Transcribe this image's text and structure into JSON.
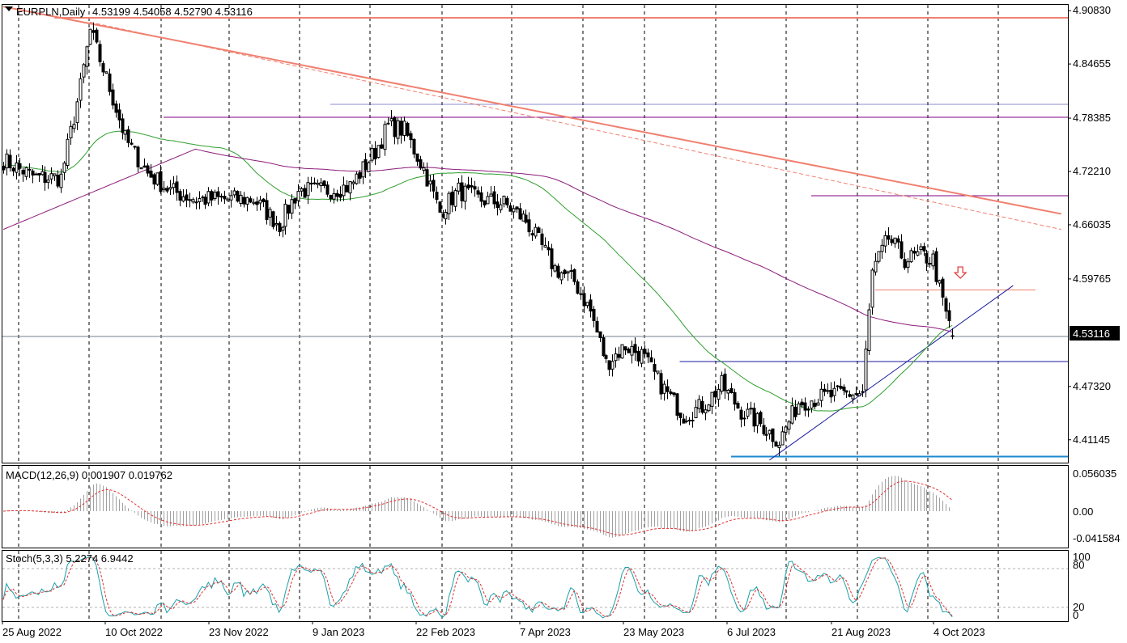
{
  "header": {
    "symbol_tf": "EURPLN,Daily",
    "ohlc": "4.53199 4.54058 4.52790 4.53116"
  },
  "price_axis": {
    "labels": [
      "4.90830",
      "4.84655",
      "4.78385",
      "4.72210",
      "4.66035",
      "4.59765",
      "4.47320",
      "4.41145"
    ],
    "current_price": "4.53116"
  },
  "macd": {
    "label": "MACD(12,26,9) 0.001907 0.019762",
    "axis_labels": [
      "0.056035",
      "0.00",
      "-0.041584"
    ]
  },
  "stoch": {
    "label": "Stoch(5,3,3) 5.2274 6.9442",
    "axis_labels": [
      "100",
      "80",
      "20",
      "0"
    ]
  },
  "time_axis": {
    "labels": [
      "25 Aug 2022",
      "10 Oct 2022",
      "23 Nov 2022",
      "9 Jan 2023",
      "22 Feb 2023",
      "7 Apr 2023",
      "23 May 2023",
      "6 Jul 2023",
      "21 Aug 2023",
      "4 Oct 2023"
    ]
  },
  "colors": {
    "bull": "#000000",
    "bear": "#000000",
    "ma_fast": "#2e9e2e",
    "ma_slow": "#8b1a7a",
    "trend_res": "#f08070",
    "support_blue": "#1a1aa0",
    "level_purple": "#800080",
    "arrow": "#e03030",
    "macd_line": "#e03030",
    "stoch_main": "#1aa0a8",
    "stoch_signal": "#e03030"
  },
  "chart_data": {
    "type": "candlestick",
    "symbol": "EURPLN",
    "timeframe": "Daily",
    "last": {
      "open": 4.53199,
      "high": 4.54058,
      "low": 4.5279,
      "close": 4.53116
    },
    "y_range": [
      4.385,
      4.915
    ],
    "anchors": [
      {
        "i": 0,
        "p": 4.735
      },
      {
        "i": 10,
        "p": 4.715
      },
      {
        "i": 18,
        "p": 4.715
      },
      {
        "i": 24,
        "p": 4.82
      },
      {
        "i": 27,
        "p": 4.885
      },
      {
        "i": 32,
        "p": 4.83
      },
      {
        "i": 38,
        "p": 4.76
      },
      {
        "i": 45,
        "p": 4.72
      },
      {
        "i": 52,
        "p": 4.7
      },
      {
        "i": 60,
        "p": 4.69
      },
      {
        "i": 70,
        "p": 4.69
      },
      {
        "i": 78,
        "p": 4.69
      },
      {
        "i": 86,
        "p": 4.66
      },
      {
        "i": 92,
        "p": 4.7
      },
      {
        "i": 100,
        "p": 4.7
      },
      {
        "i": 108,
        "p": 4.705
      },
      {
        "i": 116,
        "p": 4.745
      },
      {
        "i": 120,
        "p": 4.775
      },
      {
        "i": 125,
        "p": 4.77
      },
      {
        "i": 131,
        "p": 4.725
      },
      {
        "i": 136,
        "p": 4.675
      },
      {
        "i": 142,
        "p": 4.7
      },
      {
        "i": 148,
        "p": 4.69
      },
      {
        "i": 156,
        "p": 4.685
      },
      {
        "i": 163,
        "p": 4.665
      },
      {
        "i": 172,
        "p": 4.61
      },
      {
        "i": 178,
        "p": 4.595
      },
      {
        "i": 183,
        "p": 4.56
      },
      {
        "i": 188,
        "p": 4.5
      },
      {
        "i": 194,
        "p": 4.52
      },
      {
        "i": 199,
        "p": 4.51
      },
      {
        "i": 205,
        "p": 4.475
      },
      {
        "i": 212,
        "p": 4.44
      },
      {
        "i": 218,
        "p": 4.45
      },
      {
        "i": 224,
        "p": 4.475
      },
      {
        "i": 230,
        "p": 4.445
      },
      {
        "i": 236,
        "p": 4.43
      },
      {
        "i": 242,
        "p": 4.41
      },
      {
        "i": 248,
        "p": 4.455
      },
      {
        "i": 254,
        "p": 4.46
      },
      {
        "i": 262,
        "p": 4.465
      },
      {
        "i": 268,
        "p": 4.465
      },
      {
        "i": 271,
        "p": 4.605
      },
      {
        "i": 276,
        "p": 4.645
      },
      {
        "i": 281,
        "p": 4.62
      },
      {
        "i": 286,
        "p": 4.625
      },
      {
        "i": 290,
        "p": 4.62
      },
      {
        "i": 293,
        "p": 4.57
      },
      {
        "i": 296,
        "p": 4.532
      }
    ],
    "levels": [
      {
        "name": "resistance-top",
        "price": 4.9,
        "from": 16,
        "to": 999,
        "color": "trend_res",
        "width": 2
      },
      {
        "name": "level-4.79",
        "price": 4.785,
        "from": 50,
        "to": 999,
        "color": "level_purple",
        "width": 1
      },
      {
        "name": "level-4.80",
        "price": 4.8,
        "from": 102,
        "to": 999,
        "color": "support_blue",
        "width": 1,
        "opacity": 0.5
      },
      {
        "name": "level-4.69",
        "price": 4.694,
        "from": 252,
        "to": 999,
        "color": "level_purple",
        "width": 1
      },
      {
        "name": "level-4.59",
        "price": 4.585,
        "from": 272,
        "to": 322,
        "color": "trend_res",
        "width": 1
      },
      {
        "name": "level-4.50",
        "price": 4.502,
        "from": 211,
        "to": 999,
        "color": "support_blue",
        "width": 1
      },
      {
        "name": "level-4.39",
        "price": 4.392,
        "from": 227,
        "to": 999,
        "color": "support_blue",
        "width": 2,
        "light": true
      }
    ],
    "trendlines": [
      {
        "name": "trend-down-main",
        "from": {
          "i": 0,
          "p": 4.913
        },
        "to": {
          "i": 330,
          "p": 4.673
        },
        "color": "trend_res",
        "width": 2
      },
      {
        "name": "trend-down-dashed",
        "from": {
          "i": 27,
          "p": 4.895
        },
        "to": {
          "i": 330,
          "p": 4.655
        },
        "color": "trend_res",
        "width": 1,
        "dash": true
      },
      {
        "name": "trend-up",
        "from": {
          "i": 239,
          "p": 4.388
        },
        "to": {
          "i": 315,
          "p": 4.59
        },
        "color": "support_blue",
        "width": 1
      }
    ],
    "arrow": {
      "i": 296,
      "p": 4.605,
      "dir": "down"
    }
  }
}
